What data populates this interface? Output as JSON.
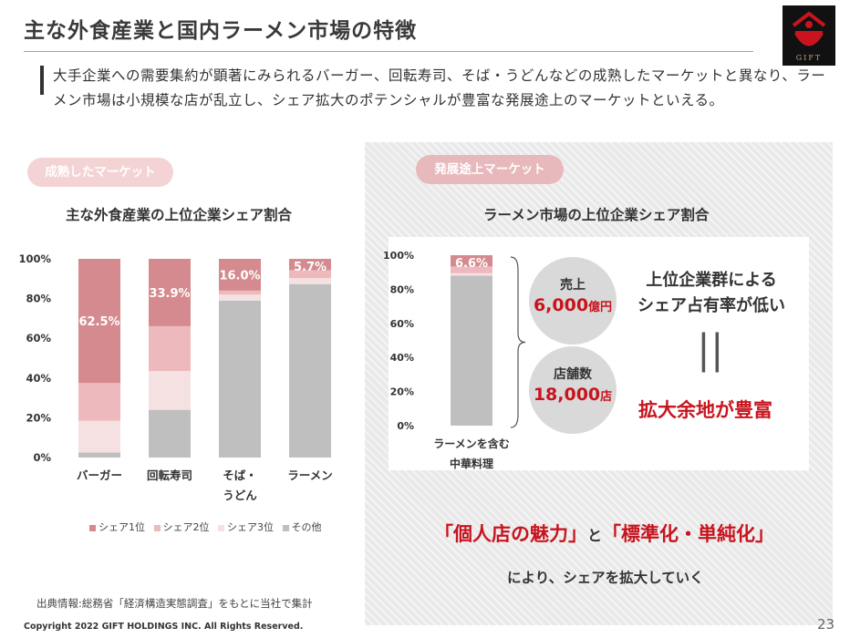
{
  "header": {
    "title": "主な外食産業と国内ラーメン市場の特徴",
    "logo_text": "GIFT"
  },
  "lead": {
    "text": "大手企業への需要集約が顕著にみられるバーガー、回転寿司、そば・うどんなどの成熟したマーケットと異なり、ラーメン市場は小規模な店が乱立し、シェア拡大のポテンシャルが豊富な発展途上のマーケットといえる。"
  },
  "left": {
    "pill": "成熟したマーケット",
    "chart_title": "主な外食産業の上位企業シェア割合"
  },
  "right": {
    "pill": "発展途上マーケット",
    "chart_title": "ラーメン市場の上位企業シェア割合",
    "circle1": {
      "label": "売上",
      "value": "6,000",
      "unit": "億円"
    },
    "circle2": {
      "label": "店舗数",
      "value": "18,000",
      "unit": "店"
    },
    "message_line1": "上位企業群による",
    "message_line2": "シェア占有率が低い",
    "equals": "||",
    "result": "拡大余地が豊富",
    "quote_left": "「個人店の魅力」",
    "quote_and": "と",
    "quote_right": "「標準化・単純化」",
    "sub": "により、シェアを拡大していく"
  },
  "footer": {
    "source": "出典情報:総務省「経済構造実態調査」をもとに当社で集計",
    "copyright": "Copyright 2022 GIFT HOLDINGS INC. All Rights Reserved.",
    "page": "23"
  },
  "colors": {
    "share1": "#d48a8e",
    "share2": "#eeb9bc",
    "share3": "#f5e1e2",
    "other": "#bfbfbf",
    "accent": "#c8141e"
  },
  "chart_data": [
    {
      "type": "bar",
      "stacked": true,
      "title": "主な外食産業の上位企業シェア割合",
      "categories": [
        "バーガー",
        "回転寿司",
        "そば・うどん",
        "ラーメン"
      ],
      "category_lines": [
        [
          "バーガー"
        ],
        [
          "回転寿司"
        ],
        [
          "そば・",
          "うどん"
        ],
        [
          "ラーメン"
        ]
      ],
      "yticks": [
        "0%",
        "20%",
        "40%",
        "60%",
        "80%",
        "100%"
      ],
      "ylim": [
        0,
        100
      ],
      "series": [
        {
          "name": "その他",
          "values": [
            2.5,
            24.0,
            79.0,
            87.3
          ]
        },
        {
          "name": "シェア3位",
          "values": [
            16.0,
            19.5,
            3.0,
            3.0
          ]
        },
        {
          "name": "シェア2位",
          "values": [
            19.0,
            22.6,
            2.0,
            4.0
          ]
        },
        {
          "name": "シェア1位",
          "values": [
            62.5,
            33.9,
            16.0,
            5.7
          ]
        }
      ],
      "data_labels": [
        "62.5%",
        "33.9%",
        "16.0%",
        "5.7%"
      ],
      "legend": [
        "シェア1位",
        "シェア2位",
        "シェア3位",
        "その他"
      ],
      "legend_position": "bottom"
    },
    {
      "type": "bar",
      "stacked": true,
      "title": "ラーメン市場の上位企業シェア割合",
      "categories": [
        "ラーメンを含む中華料理"
      ],
      "category_lines": [
        [
          "ラーメンを含む",
          "中華料理"
        ]
      ],
      "yticks": [
        "0%",
        "20%",
        "40%",
        "60%",
        "80%",
        "100%"
      ],
      "ylim": [
        0,
        100
      ],
      "series": [
        {
          "name": "その他",
          "values": [
            88.0
          ]
        },
        {
          "name": "シェア3位",
          "values": [
            1.4
          ]
        },
        {
          "name": "シェア2位",
          "values": [
            4.0
          ]
        },
        {
          "name": "シェア1位",
          "values": [
            6.6
          ]
        }
      ],
      "data_labels": [
        "6.6%"
      ]
    }
  ]
}
